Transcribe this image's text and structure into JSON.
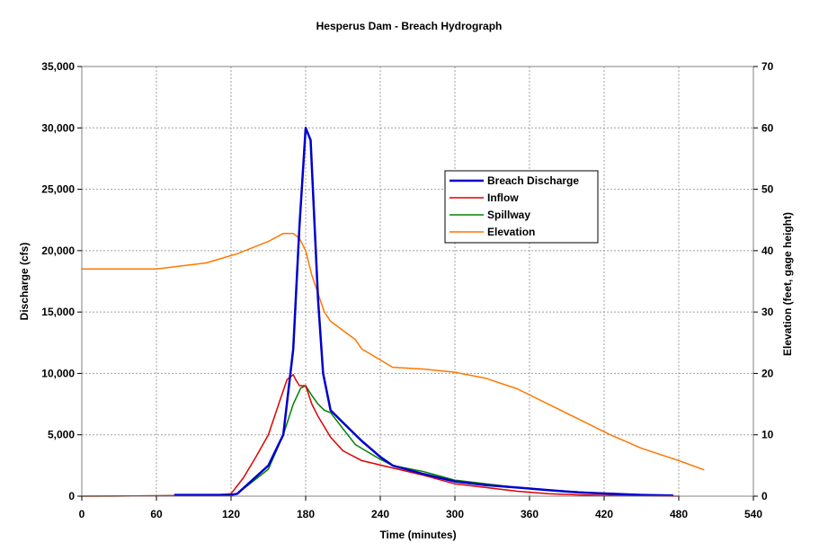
{
  "chart_data": {
    "type": "line",
    "title": "Hesperus Dam - Breach Hydrograph",
    "xlabel": "Time (minutes)",
    "ylabel": "Discharge (cfs)",
    "y2label": "Elevation (feet, gage height)",
    "xlim": [
      0,
      540
    ],
    "ylim": [
      0,
      35000
    ],
    "y2lim": [
      0,
      70
    ],
    "x_ticks": [
      "0",
      "60",
      "120",
      "180",
      "240",
      "300",
      "360",
      "420",
      "480",
      "540"
    ],
    "y_ticks": [
      "0",
      "5,000",
      "10,000",
      "15,000",
      "20,000",
      "25,000",
      "30,000",
      "35,000"
    ],
    "y2_ticks": [
      "0",
      "10",
      "20",
      "30",
      "40",
      "50",
      "60",
      "70"
    ],
    "grid": true,
    "legend_position": "right-center",
    "series": [
      {
        "name": "Breach Discharge",
        "axis": "left",
        "color": "#0000cc",
        "width": 2.5,
        "x": [
          75,
          100,
          120,
          125,
          150,
          162,
          170,
          175,
          180,
          184,
          190,
          194,
          200,
          210,
          225,
          240,
          250,
          275,
          300,
          325,
          350,
          375,
          400,
          425,
          450,
          475
        ],
        "y": [
          100,
          100,
          100,
          200,
          2500,
          5000,
          12000,
          22000,
          30000,
          29000,
          16000,
          10000,
          7000,
          6000,
          4500,
          3200,
          2500,
          1800,
          1200,
          900,
          700,
          500,
          300,
          200,
          100,
          50
        ]
      },
      {
        "name": "Inflow",
        "axis": "left",
        "color": "#dd0000",
        "width": 1.5,
        "x": [
          0,
          100,
          120,
          130,
          140,
          150,
          160,
          165,
          170,
          172,
          175,
          180,
          185,
          190,
          200,
          210,
          225,
          250,
          275,
          300,
          325,
          350,
          375,
          400,
          425,
          450,
          480
        ],
        "y": [
          0,
          50,
          200,
          1500,
          3200,
          5000,
          8000,
          9500,
          9900,
          9500,
          9000,
          9000,
          7500,
          6500,
          4800,
          3700,
          2900,
          2300,
          1700,
          1000,
          700,
          400,
          200,
          100,
          50,
          20,
          0
        ]
      },
      {
        "name": "Spillway",
        "axis": "left",
        "color": "#008000",
        "width": 1.5,
        "x": [
          0,
          100,
          120,
          125,
          150,
          162,
          170,
          176,
          180,
          185,
          190,
          195,
          200,
          210,
          220,
          240,
          250,
          275,
          300,
          325,
          350,
          375,
          400,
          425,
          450,
          475
        ],
        "y": [
          0,
          50,
          100,
          200,
          2200,
          5000,
          7500,
          8800,
          9000,
          8200,
          7500,
          7000,
          6800,
          5500,
          4200,
          3000,
          2500,
          2000,
          1300,
          1000,
          700,
          500,
          350,
          200,
          100,
          50
        ]
      },
      {
        "name": "Elevation",
        "axis": "right",
        "color": "#ff7700",
        "width": 1.5,
        "x": [
          0,
          60,
          100,
          125,
          150,
          162,
          170,
          175,
          180,
          185,
          190,
          195,
          200,
          210,
          220,
          225,
          250,
          275,
          300,
          325,
          350,
          375,
          400,
          425,
          450,
          480,
          500
        ],
        "y": [
          37,
          37,
          38,
          39.5,
          41.5,
          42.8,
          42.8,
          42,
          40,
          36,
          33,
          30,
          28.5,
          27,
          25.5,
          24,
          21,
          20.7,
          20.2,
          19.2,
          17.5,
          15,
          12.5,
          10,
          7.8,
          5.8,
          4.3
        ]
      }
    ]
  }
}
